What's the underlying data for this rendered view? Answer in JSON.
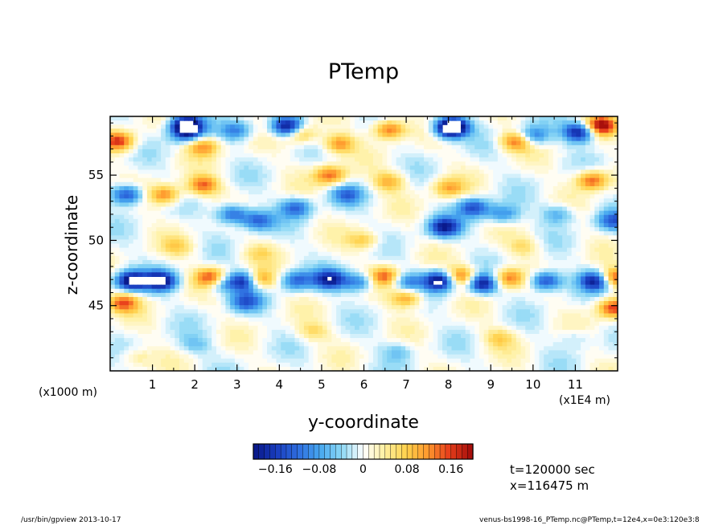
{
  "chart_data": {
    "type": "heatmap",
    "title": "PTemp",
    "xlabel": "y-coordinate",
    "ylabel": "z-coordinate",
    "x_unit": "(x1E4 m)",
    "y_unit": "(x1000 m)",
    "xlim": [
      0,
      12
    ],
    "ylim": [
      40,
      59.5
    ],
    "xticks": [
      "1",
      "2",
      "3",
      "4",
      "5",
      "6",
      "7",
      "8",
      "9",
      "10",
      "11"
    ],
    "yticks": [
      "45",
      "50",
      "55"
    ],
    "colorbar": {
      "ticks": [
        "-0.16",
        "-0.08",
        "0",
        "0.08",
        "0.16"
      ],
      "range": [
        -0.2,
        0.2
      ],
      "levels": 40,
      "colors": [
        "#0a1a8c",
        "#1a3fc0",
        "#2f6fe0",
        "#47a8f0",
        "#8dd8f5",
        "#ffffff",
        "#fff0a0",
        "#ffd24d",
        "#ff9a2e",
        "#e8401c",
        "#a8100c"
      ]
    },
    "annotations": {
      "time": "t=120000 sec",
      "position": "x=116475 m"
    },
    "footer": {
      "left": "/usr/bin/gpview   2013-10-17",
      "right": "venus-bs1998-16_PTemp.nc@PTemp,t=12e4,x=0e3:120e3:8"
    },
    "features": [
      {
        "x": 0.5,
        "y": 46.9,
        "v": -0.22
      },
      {
        "x": 1.2,
        "y": 46.9,
        "v": -0.2
      },
      {
        "x": 2.6,
        "y": 46.7,
        "v": -0.12
      },
      {
        "x": 3.2,
        "y": 46.9,
        "v": -0.2
      },
      {
        "x": 4.4,
        "y": 46.9,
        "v": -0.12
      },
      {
        "x": 5.2,
        "y": 47.0,
        "v": -0.18
      },
      {
        "x": 5.9,
        "y": 46.8,
        "v": -0.12
      },
      {
        "x": 7.0,
        "y": 46.8,
        "v": -0.1
      },
      {
        "x": 7.8,
        "y": 46.9,
        "v": -0.22
      },
      {
        "x": 8.8,
        "y": 46.7,
        "v": -0.2
      },
      {
        "x": 10.3,
        "y": 46.9,
        "v": -0.16
      },
      {
        "x": 11.5,
        "y": 46.9,
        "v": -0.2
      },
      {
        "x": 2.4,
        "y": 47.1,
        "v": 0.18
      },
      {
        "x": 3.5,
        "y": 47.0,
        "v": 0.16
      },
      {
        "x": 6.5,
        "y": 47.2,
        "v": 0.14
      },
      {
        "x": 8.3,
        "y": 47.2,
        "v": 0.16
      },
      {
        "x": 9.4,
        "y": 47.1,
        "v": 0.14
      },
      {
        "x": 11.9,
        "y": 47.1,
        "v": 0.18
      },
      {
        "x": 0.3,
        "y": 45.2,
        "v": 0.14
      },
      {
        "x": 3.2,
        "y": 45.3,
        "v": -0.12
      },
      {
        "x": 7.0,
        "y": 45.6,
        "v": 0.12
      },
      {
        "x": 11.9,
        "y": 44.8,
        "v": 0.16
      },
      {
        "x": 1.3,
        "y": 53.5,
        "v": 0.13
      },
      {
        "x": 2.2,
        "y": 54.2,
        "v": 0.14
      },
      {
        "x": 5.2,
        "y": 55.0,
        "v": 0.14
      },
      {
        "x": 6.6,
        "y": 54.5,
        "v": 0.1
      },
      {
        "x": 8.0,
        "y": 54.0,
        "v": 0.1
      },
      {
        "x": 11.4,
        "y": 54.6,
        "v": 0.15
      },
      {
        "x": 0.4,
        "y": 53.5,
        "v": -0.16
      },
      {
        "x": 2.9,
        "y": 52.0,
        "v": -0.14
      },
      {
        "x": 3.5,
        "y": 51.5,
        "v": -0.12
      },
      {
        "x": 4.4,
        "y": 52.5,
        "v": -0.12
      },
      {
        "x": 5.6,
        "y": 53.5,
        "v": -0.1
      },
      {
        "x": 7.9,
        "y": 51.0,
        "v": -0.18
      },
      {
        "x": 8.6,
        "y": 52.5,
        "v": -0.14
      },
      {
        "x": 9.3,
        "y": 52.0,
        "v": -0.1
      },
      {
        "x": 11.9,
        "y": 51.5,
        "v": -0.12
      },
      {
        "x": 1.8,
        "y": 58.2,
        "v": -0.14
      },
      {
        "x": 3.0,
        "y": 58.4,
        "v": -0.1
      },
      {
        "x": 4.5,
        "y": 58.2,
        "v": 0.12
      },
      {
        "x": 6.6,
        "y": 58.5,
        "v": 0.15
      },
      {
        "x": 8.0,
        "y": 58.5,
        "v": -0.1
      },
      {
        "x": 10.0,
        "y": 58.0,
        "v": -0.12
      },
      {
        "x": 11.6,
        "y": 58.8,
        "v": 0.2
      },
      {
        "x": 0.2,
        "y": 57.6,
        "v": 0.16
      },
      {
        "x": 2.2,
        "y": 57.2,
        "v": 0.12
      },
      {
        "x": 9.6,
        "y": 57.6,
        "v": 0.14
      },
      {
        "x": 5.4,
        "y": 57.4,
        "v": 0.12
      },
      {
        "x": 1.8,
        "y": 58.9,
        "v": -0.22
      },
      {
        "x": 4.2,
        "y": 58.7,
        "v": -0.22
      },
      {
        "x": 8.1,
        "y": 58.7,
        "v": -0.22
      },
      {
        "x": 11.1,
        "y": 58.3,
        "v": -0.2
      },
      {
        "x": 4.8,
        "y": 43.0,
        "v": 0.06
      },
      {
        "x": 9.2,
        "y": 42.5,
        "v": 0.07
      },
      {
        "x": 2.0,
        "y": 42.0,
        "v": -0.05
      },
      {
        "x": 6.8,
        "y": 41.5,
        "v": -0.05
      },
      {
        "x": 11.0,
        "y": 42.5,
        "v": -0.04
      },
      {
        "x": 0.6,
        "y": 41.0,
        "v": 0.05
      },
      {
        "x": 3.5,
        "y": 49.0,
        "v": 0.05
      },
      {
        "x": 6.0,
        "y": 50.0,
        "v": 0.08
      },
      {
        "x": 9.8,
        "y": 49.5,
        "v": 0.06
      },
      {
        "x": 10.6,
        "y": 52.0,
        "v": -0.08
      },
      {
        "x": 1.6,
        "y": 49.5,
        "v": 0.06
      }
    ]
  }
}
